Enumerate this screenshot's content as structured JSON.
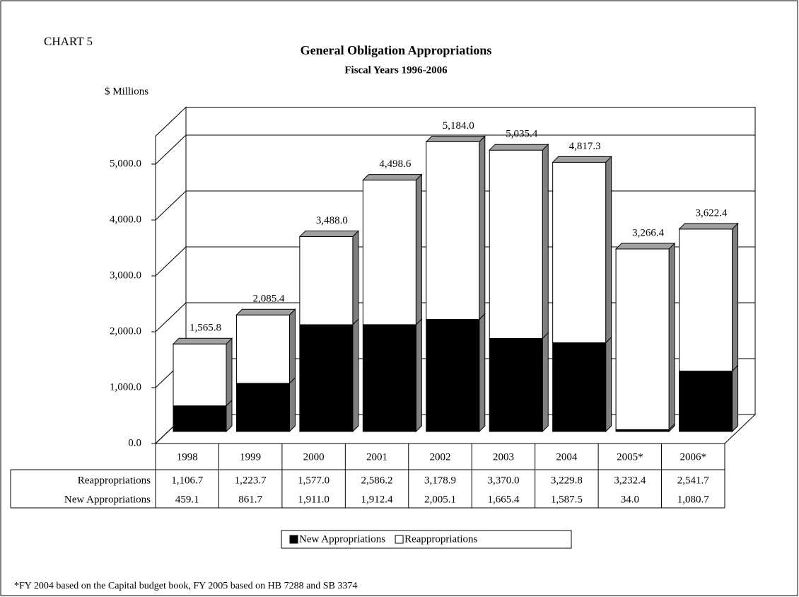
{
  "chart_data": {
    "type": "bar",
    "stacked": true,
    "label": "CHART 5",
    "title": "General Obligation Appropriations",
    "subtitle": "Fiscal Years 1996-2006",
    "y_label": "$ Millions",
    "footnote": "*FY 2004 based on the Capital budget book, FY 2005 based on HB 7288 and SB 3374",
    "categories": [
      "1998",
      "1999",
      "2000",
      "2001",
      "2002",
      "2003",
      "2004",
      "2005*",
      "2006*"
    ],
    "series": [
      {
        "name": "New Appropriations",
        "color": "#000000",
        "values": [
          459.1,
          861.7,
          1911.0,
          1912.4,
          2005.1,
          1665.4,
          1587.5,
          34.0,
          1080.7
        ],
        "value_labels": [
          "459.1",
          "861.7",
          "1,911.0",
          "1,912.4",
          "2,005.1",
          "1,665.4",
          "1,587.5",
          "34.0",
          "1,080.7"
        ]
      },
      {
        "name": "Reappropriations",
        "color": "#ffffff",
        "values": [
          1106.7,
          1223.7,
          1577.0,
          2586.2,
          3178.9,
          3370.0,
          3229.8,
          3232.4,
          2541.7
        ],
        "value_labels": [
          "1,106.7",
          "1,223.7",
          "1,577.0",
          "2,586.2",
          "3,178.9",
          "3,370.0",
          "3,229.8",
          "3,232.4",
          "2,541.7"
        ]
      }
    ],
    "totals": [
      1565.8,
      2085.4,
      3488.0,
      4498.6,
      5184.0,
      5035.4,
      4817.3,
      3266.4,
      3622.4
    ],
    "total_labels": [
      "1,565.8",
      "2,085.4",
      "3,488.0",
      "4,498.6",
      "5,184.0",
      "5,035.4",
      "4,817.3",
      "3,266.4",
      "3,622.4"
    ],
    "ylim": [
      0,
      5500
    ],
    "yticks": [
      {
        "value": 0,
        "label": "0.0"
      },
      {
        "value": 1000,
        "label": "1,000.0"
      },
      {
        "value": 2000,
        "label": "2,000.0"
      },
      {
        "value": 3000,
        "label": "3,000.0"
      },
      {
        "value": 4000,
        "label": "4,000.0"
      },
      {
        "value": 5000,
        "label": "5,000.0"
      }
    ],
    "grid": true,
    "legend": "bottom"
  }
}
